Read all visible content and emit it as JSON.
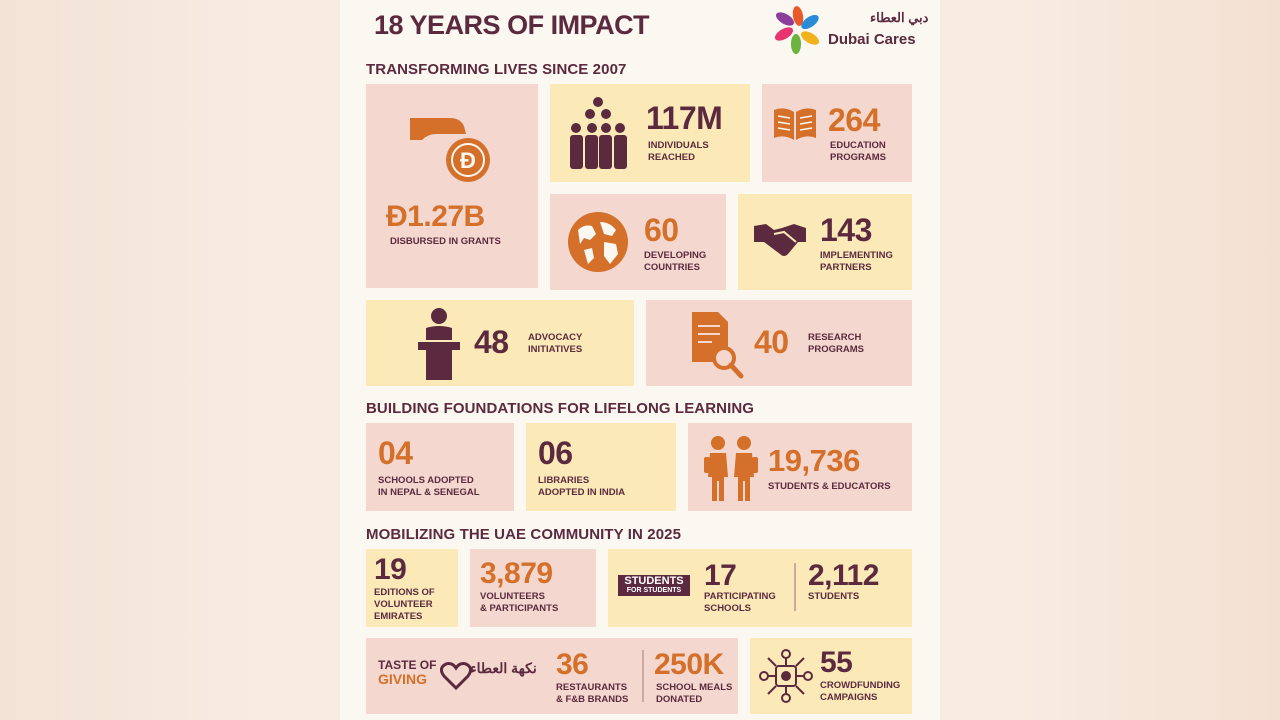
{
  "header": {
    "title": "18 YEARS OF IMPACT",
    "brand_arabic": "دبي العطاء",
    "brand_name": "Dubai Cares"
  },
  "section1": {
    "heading": "TRANSFORMING LIVES SINCE 2007",
    "grants": {
      "value": "1.27B",
      "label": "DISBURSED IN GRANTS"
    },
    "individuals": {
      "value": "117M",
      "label": "INDIVIDUALS\nREACHED"
    },
    "education": {
      "value": "264",
      "label": "EDUCATION\nPROGRAMS"
    },
    "countries": {
      "value": "60",
      "label": "DEVELOPING\nCOUNTRIES"
    },
    "partners": {
      "value": "143",
      "label": "IMPLEMENTING\nPARTNERS"
    },
    "advocacy": {
      "value": "48",
      "label": "ADVOCACY\nINITIATIVES"
    },
    "research": {
      "value": "40",
      "label": "RESEARCH\nPROGRAMS"
    }
  },
  "section2": {
    "heading": "BUILDING FOUNDATIONS FOR LIFELONG LEARNING",
    "schools": {
      "value": "04",
      "label": "SCHOOLS ADOPTED\nIN NEPAL & SENEGAL"
    },
    "libraries": {
      "value": "06",
      "label": "LIBRARIES\nADOPTED IN INDIA"
    },
    "students": {
      "value": "19,736",
      "label": "STUDENTS & EDUCATORS"
    }
  },
  "section3": {
    "heading": "MOBILIZING THE UAE COMMUNITY IN 2025",
    "editions": {
      "value": "19",
      "label": "EDITIONS OF\nVOLUNTEER\nEMIRATES"
    },
    "volunteers": {
      "value": "3,879",
      "label": "VOLUNTEERS\n& PARTICIPANTS"
    },
    "sfs_logo": {
      "line1": "STUDENTS",
      "line2": "FOR STUDENTS"
    },
    "participating": {
      "value": "17",
      "label": "PARTICIPATING\nSCHOOLS"
    },
    "sfs_students": {
      "value": "2,112",
      "label": "STUDENTS"
    },
    "tog_logo": {
      "line1": "TASTE OF",
      "line2": "GIVING",
      "arabic": "نكهة العطاء"
    },
    "restaurants": {
      "value": "36",
      "label": "RESTAURANTS\n& F&B BRANDS"
    },
    "meals": {
      "value": "250K",
      "label": "SCHOOL MEALS\nDONATED"
    },
    "crowdfunding": {
      "value": "55",
      "label": "CROWDFUNDING\nCAMPAIGNS"
    }
  },
  "colors": {
    "plum": "#5b2a3f",
    "orange": "#d4702a",
    "pink": "#f4d8cf",
    "yellow": "#fbeab8"
  }
}
